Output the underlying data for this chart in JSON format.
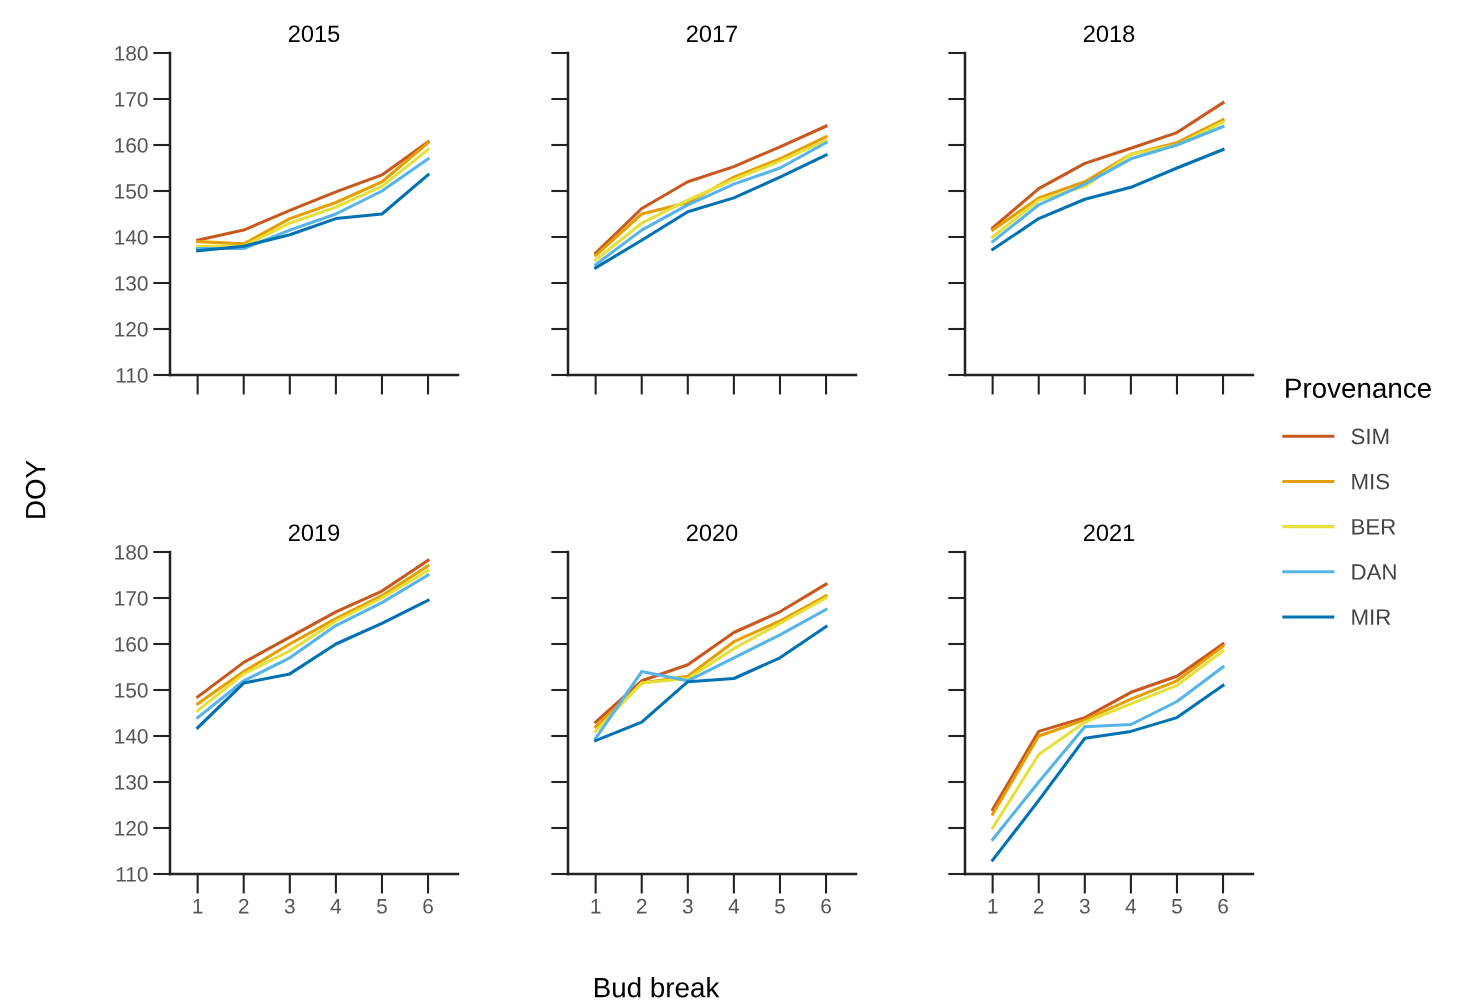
{
  "chart_data": [
    {
      "type": "line",
      "title": "2015",
      "ylabel": "DOY",
      "legend": "right",
      "legend_title": "Provenance",
      "categories": [
        "1",
        "2",
        "3",
        "4",
        "5",
        "6"
      ],
      "ylim": [
        110,
        180
      ],
      "yticks": [
        110,
        120,
        130,
        140,
        150,
        160,
        170,
        180
      ],
      "tick_labels": "y",
      "grid": false,
      "series": [
        {
          "name": "SIM",
          "color": "#c8581e",
          "values": [
            139.3,
            141.5,
            145.8,
            149.8,
            153.5,
            160.7
          ]
        },
        {
          "name": "MIS",
          "color": "#e69f00",
          "values": [
            139,
            138.5,
            144,
            147.5,
            152,
            160.5
          ]
        },
        {
          "name": "BER",
          "color": "#e8e03a",
          "values": [
            138,
            138,
            143,
            146.5,
            151,
            159
          ]
        },
        {
          "name": "DAN",
          "color": "#56b4e9",
          "values": [
            137.5,
            137.5,
            141.5,
            145,
            150,
            157
          ]
        },
        {
          "name": "MIR",
          "color": "#0072b2",
          "values": [
            137,
            138,
            140.5,
            144,
            145,
            153.5
          ]
        }
      ]
    },
    {
      "type": "line",
      "title": "2017",
      "categories": [
        "1",
        "2",
        "3",
        "4",
        "5",
        "6"
      ],
      "ylim": [
        110,
        180
      ],
      "yticks": [
        110,
        120,
        130,
        140,
        150,
        160,
        170,
        180
      ],
      "tick_labels": false,
      "grid": false,
      "series": [
        {
          "color": "#c8581e",
          "values": [
            136.5,
            146.2,
            152,
            155.3,
            159.6,
            164.1
          ]
        },
        {
          "color": "#e69f00",
          "values": [
            136,
            145,
            147.5,
            153,
            157,
            161.8
          ]
        },
        {
          "color": "#e8e03a",
          "values": [
            135,
            143,
            148,
            152.5,
            156.5,
            161
          ]
        },
        {
          "color": "#56b4e9",
          "values": [
            134,
            141.5,
            147,
            151.5,
            155,
            160.5
          ]
        },
        {
          "color": "#0072b2",
          "values": [
            133.3,
            139.3,
            145.5,
            148.5,
            153,
            157.8
          ]
        }
      ]
    },
    {
      "type": "line",
      "title": "2018",
      "categories": [
        "1",
        "2",
        "3",
        "4",
        "5",
        "6"
      ],
      "ylim": [
        110,
        180
      ],
      "yticks": [
        110,
        120,
        130,
        140,
        150,
        160,
        170,
        180
      ],
      "tick_labels": false,
      "grid": false,
      "series": [
        {
          "color": "#c8581e",
          "values": [
            142,
            150.5,
            156,
            159.3,
            162.7,
            169.2
          ]
        },
        {
          "color": "#e69f00",
          "values": [
            141.5,
            148.5,
            152,
            158,
            160.5,
            165.5
          ]
        },
        {
          "color": "#e8e03a",
          "values": [
            140,
            148,
            151,
            158,
            160,
            165
          ]
        },
        {
          "color": "#56b4e9",
          "values": [
            139,
            147,
            151.5,
            157,
            160,
            164
          ]
        },
        {
          "color": "#0072b2",
          "values": [
            137.3,
            144,
            148.2,
            150.8,
            155,
            159
          ]
        }
      ]
    },
    {
      "type": "line",
      "title": "2019",
      "categories": [
        "1",
        "2",
        "3",
        "4",
        "5",
        "6"
      ],
      "ylim": [
        110,
        180
      ],
      "yticks": [
        110,
        120,
        130,
        140,
        150,
        160,
        170,
        180
      ],
      "grid": false,
      "series": [
        {
          "color": "#c8581e",
          "values": [
            148.5,
            156,
            161.5,
            167,
            171.5,
            178.2
          ]
        },
        {
          "color": "#e69f00",
          "values": [
            147,
            154,
            160,
            165.5,
            170.5,
            177
          ]
        },
        {
          "color": "#e8e03a",
          "values": [
            145.5,
            153.5,
            158.5,
            165,
            170,
            176
          ]
        },
        {
          "color": "#56b4e9",
          "values": [
            144,
            152,
            157,
            164,
            169,
            175
          ]
        },
        {
          "color": "#0072b2",
          "values": [
            141.8,
            151.5,
            153.5,
            160,
            164.5,
            169.5
          ]
        }
      ]
    },
    {
      "type": "line",
      "title": "2020",
      "xlabel": "Bud break",
      "categories": [
        "1",
        "2",
        "3",
        "4",
        "5",
        "6"
      ],
      "ylim": [
        110,
        180
      ],
      "yticks": [
        110,
        120,
        130,
        140,
        150,
        160,
        170,
        180
      ],
      "tick_labels": "x",
      "grid": false,
      "series": [
        {
          "color": "#c8581e",
          "values": [
            143,
            152,
            155.5,
            162.5,
            167,
            173
          ]
        },
        {
          "color": "#e69f00",
          "values": [
            142,
            151.5,
            153,
            160.5,
            165,
            170.5
          ]
        },
        {
          "color": "#e8e03a",
          "values": [
            141,
            151.5,
            152.5,
            159,
            164.5,
            170
          ]
        },
        {
          "color": "#56b4e9",
          "values": [
            139.5,
            154,
            152,
            157,
            162,
            167.5
          ]
        },
        {
          "color": "#0072b2",
          "values": [
            139,
            143,
            151.8,
            152.5,
            157,
            163.8
          ]
        }
      ]
    },
    {
      "type": "line",
      "title": "2021",
      "categories": [
        "1",
        "2",
        "3",
        "4",
        "5",
        "6"
      ],
      "ylim": [
        110,
        180
      ],
      "yticks": [
        110,
        120,
        130,
        140,
        150,
        160,
        170,
        180
      ],
      "tick_labels": "x",
      "grid": false,
      "series": [
        {
          "color": "#c8581e",
          "values": [
            124,
            141,
            144,
            149.5,
            153,
            160
          ]
        },
        {
          "color": "#e69f00",
          "values": [
            123,
            140,
            143.5,
            148,
            152,
            159.5
          ]
        },
        {
          "color": "#e8e03a",
          "values": [
            120,
            136,
            143,
            147,
            151,
            158.5
          ]
        },
        {
          "color": "#56b4e9",
          "values": [
            117.5,
            130,
            142,
            142.5,
            147.5,
            155
          ]
        },
        {
          "color": "#0072b2",
          "values": [
            113,
            126,
            139.5,
            141,
            144,
            151
          ]
        }
      ]
    }
  ]
}
